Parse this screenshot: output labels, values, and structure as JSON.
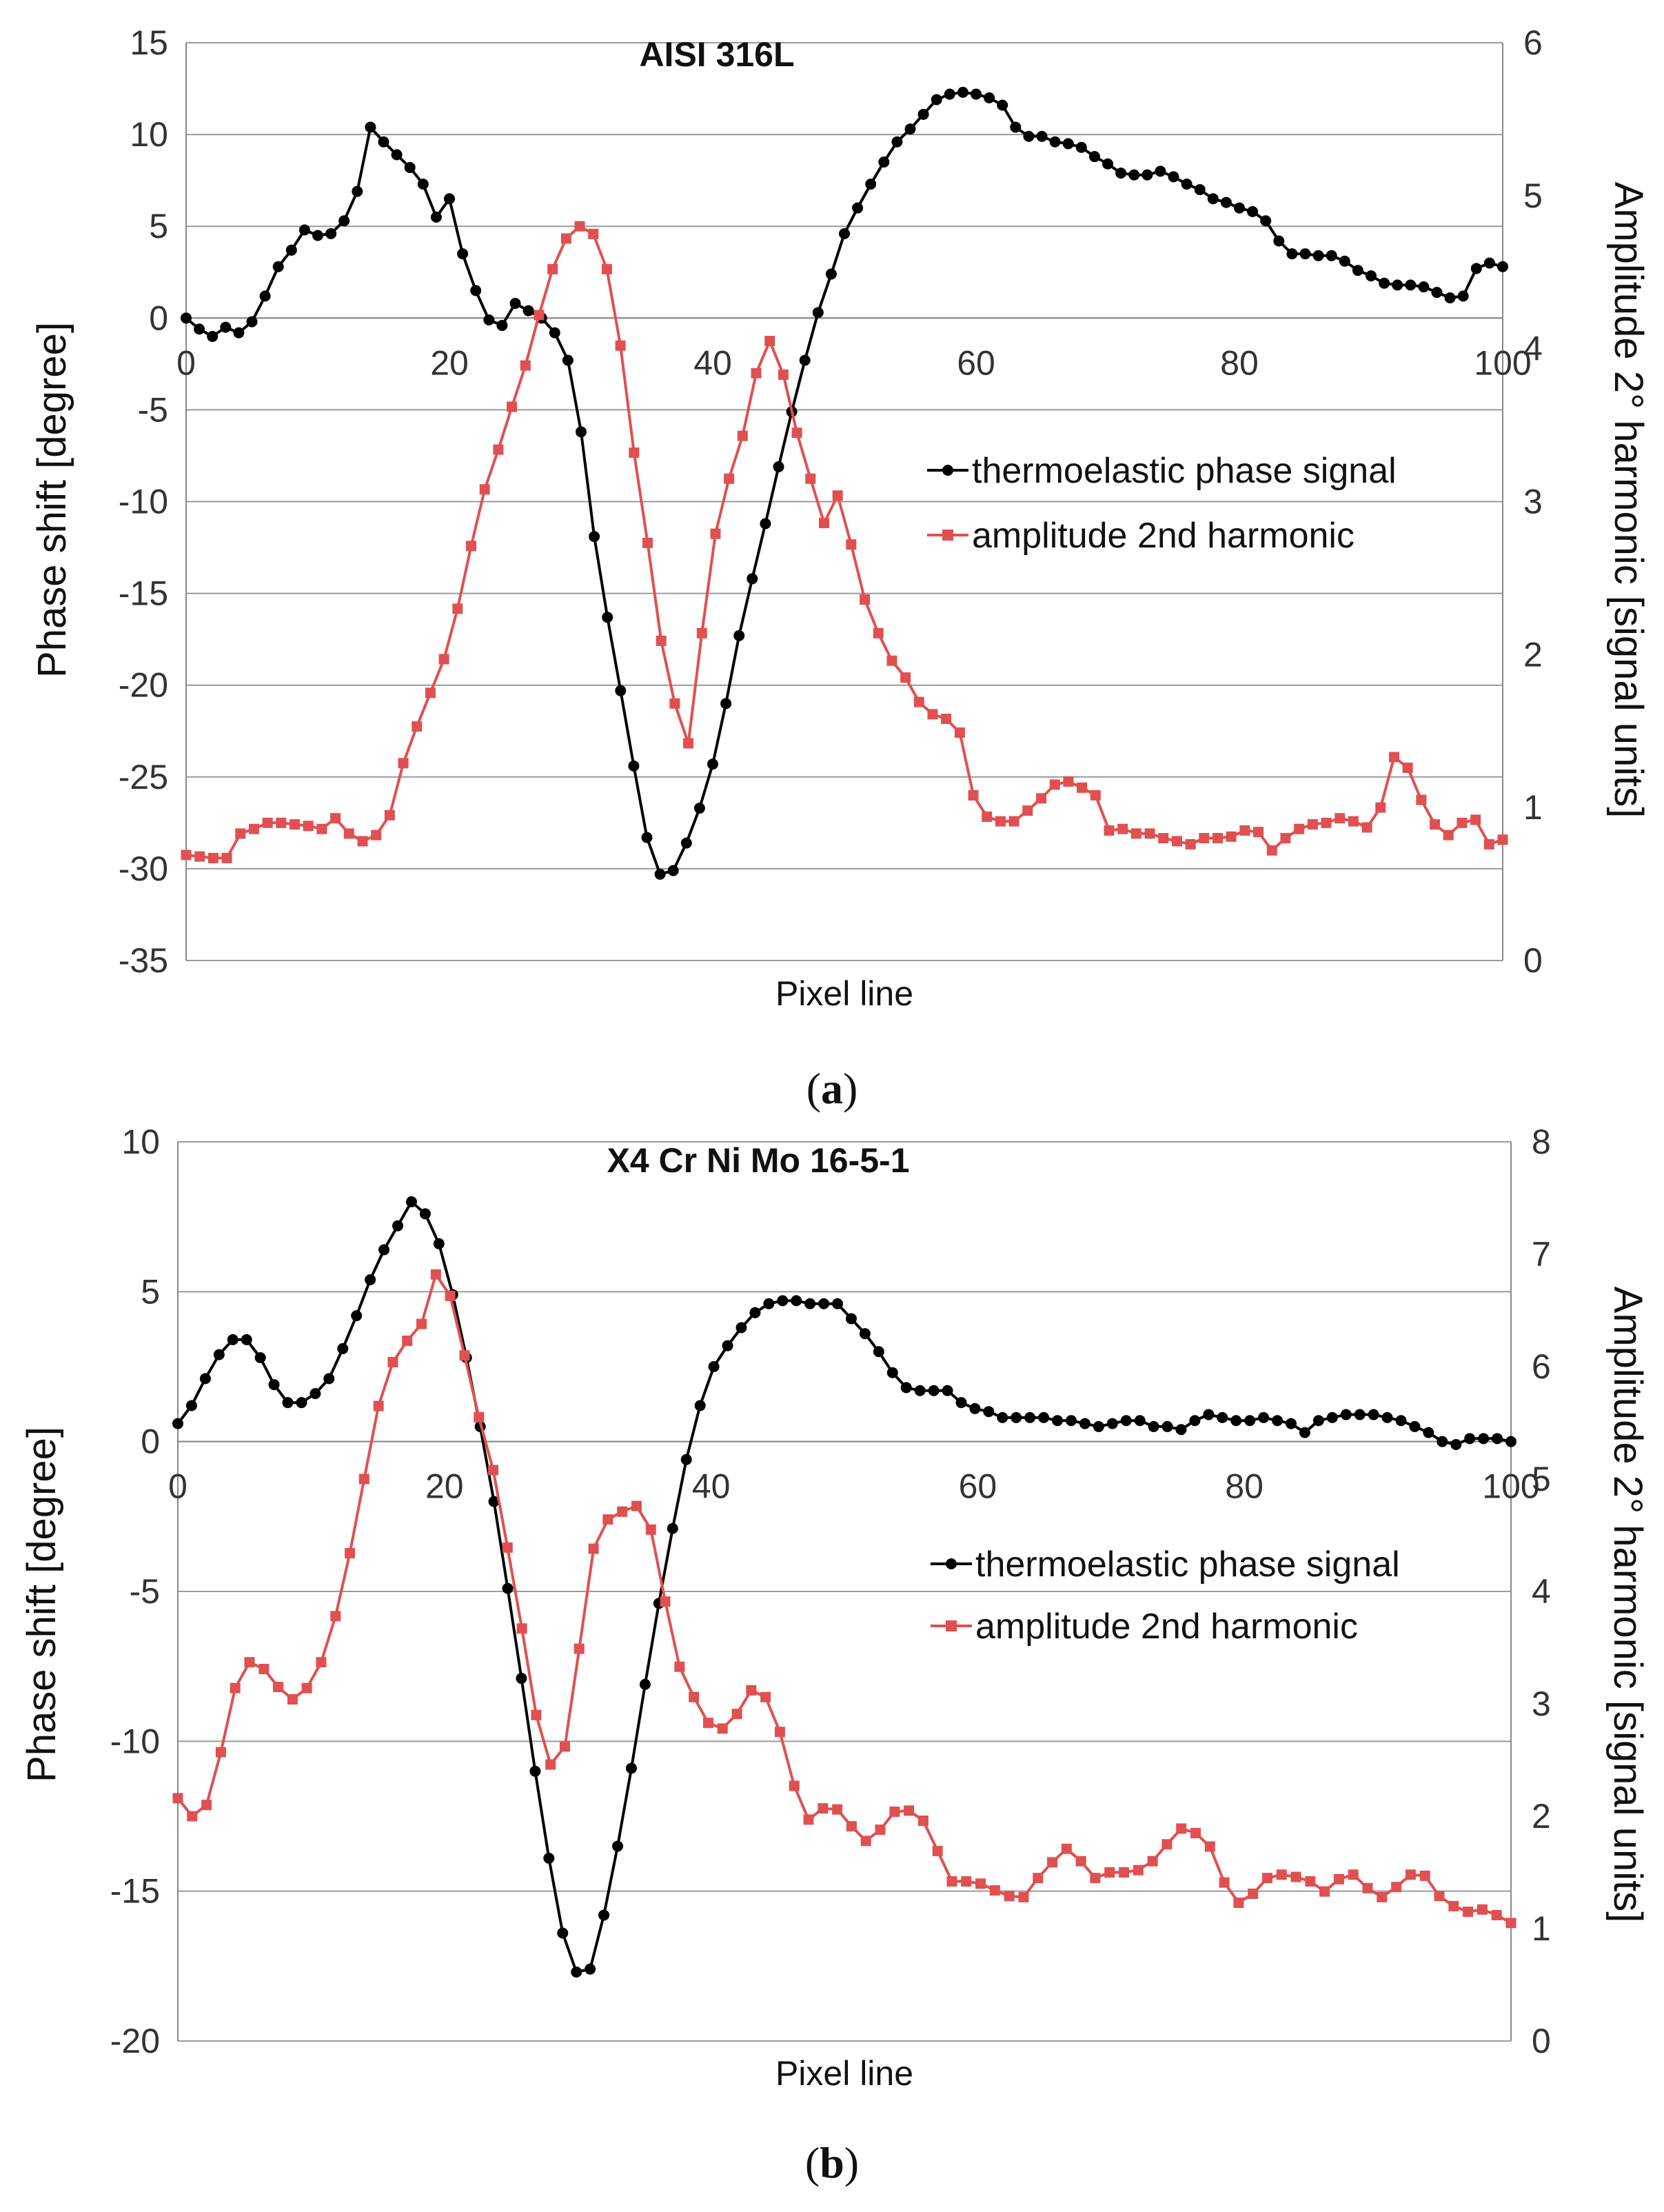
{
  "chart_data": [
    {
      "type": "line",
      "panel_label": "a",
      "title": "AISI 316L",
      "xlabel": "Pixel line",
      "ylabel": "Phase shift [degree]",
      "ylabel_right": "Amplitude 2° harmonic [signal units]",
      "xlim": [
        0,
        100
      ],
      "ylim": [
        -35,
        15
      ],
      "ylim_right": [
        0,
        6
      ],
      "x_ticks": [
        0,
        20,
        40,
        60,
        80,
        100
      ],
      "y_ticks": [
        15,
        10,
        5,
        0,
        -5,
        -10,
        -15,
        -20,
        -25,
        -30,
        -35
      ],
      "y_ticks_right": [
        6,
        5,
        4,
        3,
        2,
        1,
        0
      ],
      "legend": [
        "thermoelastic phase signal",
        "amplitude 2nd harmonic"
      ],
      "series": [
        {
          "name": "thermoelastic phase signal",
          "axis": "left",
          "color": "#000000",
          "marker": "circle",
          "values": [
            0.0,
            -0.6,
            -1.0,
            -0.5,
            -0.8,
            -0.2,
            1.2,
            2.8,
            3.7,
            4.8,
            4.5,
            4.6,
            5.3,
            6.9,
            10.4,
            9.6,
            8.9,
            8.2,
            7.3,
            5.5,
            6.5,
            3.5,
            1.5,
            -0.1,
            -0.4,
            0.8,
            0.4,
            0.0,
            -0.8,
            -2.3,
            -6.2,
            -11.9,
            -16.3,
            -20.3,
            -24.4,
            -28.3,
            -30.3,
            -30.1,
            -28.6,
            -26.7,
            -24.3,
            -21.0,
            -17.3,
            -14.2,
            -11.2,
            -8.1,
            -5.1,
            -2.3,
            0.3,
            2.4,
            4.6,
            6.0,
            7.3,
            8.5,
            9.6,
            10.3,
            11.1,
            11.9,
            12.2,
            12.3,
            12.2,
            12.0,
            11.6,
            10.4,
            9.9,
            9.9,
            9.6,
            9.5,
            9.3,
            8.8,
            8.4,
            7.9,
            7.8,
            7.8,
            8.0,
            7.7,
            7.3,
            7.0,
            6.5,
            6.3,
            6.0,
            5.8,
            5.3,
            4.2,
            3.5,
            3.5,
            3.4,
            3.4,
            3.1,
            2.6,
            2.3,
            1.9,
            1.8,
            1.8,
            1.7,
            1.4,
            1.1,
            1.2,
            2.7,
            3.0,
            2.8
          ]
        },
        {
          "name": "amplitude 2nd harmonic",
          "axis": "right",
          "color": "#e05050",
          "marker": "square",
          "values": [
            0.69,
            0.68,
            0.67,
            0.67,
            0.83,
            0.86,
            0.9,
            0.9,
            0.89,
            0.88,
            0.86,
            0.93,
            0.83,
            0.78,
            0.82,
            0.95,
            1.29,
            1.53,
            1.75,
            1.97,
            2.3,
            2.71,
            3.08,
            3.34,
            3.62,
            3.89,
            4.22,
            4.52,
            4.72,
            4.8,
            4.75,
            4.52,
            4.02,
            3.32,
            2.73,
            2.09,
            1.68,
            1.42,
            2.14,
            2.79,
            3.15,
            3.43,
            3.84,
            4.05,
            3.83,
            3.45,
            3.15,
            2.86,
            3.04,
            2.72,
            2.36,
            2.14,
            1.96,
            1.85,
            1.69,
            1.61,
            1.58,
            1.49,
            1.08,
            0.94,
            0.91,
            0.91,
            0.98,
            1.06,
            1.15,
            1.17,
            1.13,
            1.08,
            0.85,
            0.86,
            0.83,
            0.83,
            0.8,
            0.78,
            0.76,
            0.8,
            0.8,
            0.81,
            0.85,
            0.84,
            0.72,
            0.8,
            0.86,
            0.89,
            0.9,
            0.93,
            0.91,
            0.87,
            1.0,
            1.33,
            1.26,
            1.05,
            0.89,
            0.82,
            0.9,
            0.92,
            0.76,
            0.79
          ]
        }
      ]
    },
    {
      "type": "line",
      "panel_label": "b",
      "title": "X4 Cr Ni Mo 16-5-1",
      "xlabel": "Pixel line",
      "ylabel": "Phase shift [degree]",
      "ylabel_right": "Amplitude 2° harmonic [signal units]",
      "xlim": [
        0,
        100
      ],
      "ylim": [
        -20,
        10
      ],
      "ylim_right": [
        0,
        8
      ],
      "x_ticks": [
        0,
        20,
        40,
        60,
        80,
        100
      ],
      "y_ticks": [
        10,
        5,
        0,
        -5,
        -10,
        -15,
        -20
      ],
      "y_ticks_right": [
        8,
        7,
        6,
        5,
        4,
        3,
        2,
        1,
        0
      ],
      "legend": [
        "thermoelastic phase signal",
        "amplitude 2nd harmonic"
      ],
      "series": [
        {
          "name": "thermoelastic phase signal",
          "axis": "left",
          "color": "#000000",
          "marker": "circle",
          "values": [
            0.6,
            1.2,
            2.1,
            2.9,
            3.4,
            3.4,
            2.8,
            1.9,
            1.3,
            1.3,
            1.6,
            2.1,
            3.1,
            4.2,
            5.4,
            6.4,
            7.2,
            8.0,
            7.6,
            6.6,
            4.9,
            2.8,
            0.5,
            -2.0,
            -4.9,
            -7.9,
            -11.0,
            -13.9,
            -16.4,
            -17.7,
            -17.6,
            -15.8,
            -13.5,
            -10.9,
            -8.1,
            -5.4,
            -2.9,
            -0.6,
            1.2,
            2.5,
            3.2,
            3.8,
            4.3,
            4.6,
            4.7,
            4.7,
            4.6,
            4.6,
            4.6,
            4.1,
            3.6,
            3.0,
            2.3,
            1.8,
            1.7,
            1.7,
            1.7,
            1.3,
            1.1,
            1.0,
            0.8,
            0.8,
            0.8,
            0.8,
            0.7,
            0.7,
            0.6,
            0.5,
            0.6,
            0.7,
            0.7,
            0.5,
            0.5,
            0.4,
            0.7,
            0.9,
            0.8,
            0.7,
            0.7,
            0.8,
            0.7,
            0.6,
            0.3,
            0.7,
            0.8,
            0.9,
            0.9,
            0.9,
            0.8,
            0.7,
            0.5,
            0.3,
            0.0,
            -0.1,
            0.1,
            0.1,
            0.1,
            0.0
          ]
        },
        {
          "name": "amplitude 2nd harmonic",
          "axis": "right",
          "color": "#e05050",
          "marker": "square",
          "values": [
            2.16,
            2.0,
            2.1,
            2.57,
            3.14,
            3.37,
            3.31,
            3.15,
            3.04,
            3.14,
            3.37,
            3.78,
            4.34,
            5.0,
            5.65,
            6.04,
            6.23,
            6.38,
            6.82,
            6.63,
            6.1,
            5.55,
            5.08,
            4.39,
            3.67,
            2.9,
            2.46,
            2.62,
            3.49,
            4.38,
            4.64,
            4.71,
            4.76,
            4.55,
            3.91,
            3.33,
            3.06,
            2.83,
            2.78,
            2.91,
            3.12,
            3.06,
            2.75,
            2.27,
            1.97,
            2.07,
            2.06,
            1.91,
            1.78,
            1.88,
            2.04,
            2.05,
            1.96,
            1.69,
            1.42,
            1.42,
            1.4,
            1.34,
            1.29,
            1.28,
            1.45,
            1.59,
            1.71,
            1.6,
            1.45,
            1.5,
            1.5,
            1.52,
            1.6,
            1.75,
            1.89,
            1.85,
            1.73,
            1.41,
            1.23,
            1.31,
            1.45,
            1.48,
            1.46,
            1.42,
            1.33,
            1.44,
            1.48,
            1.36,
            1.28,
            1.37,
            1.48,
            1.47,
            1.29,
            1.2,
            1.15,
            1.17,
            1.12,
            1.05
          ]
        }
      ]
    }
  ]
}
